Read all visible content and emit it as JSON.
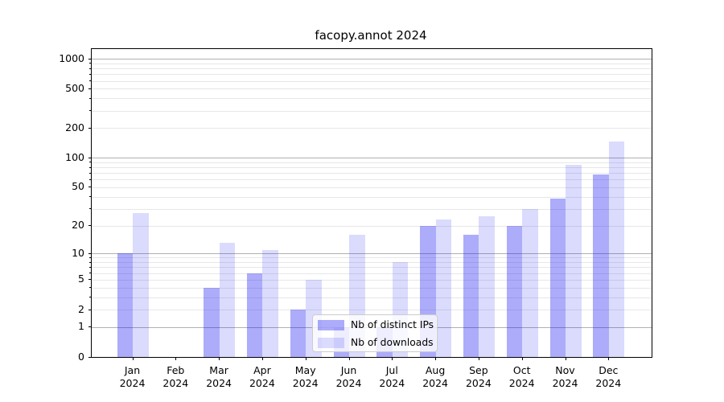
{
  "title": "facopy.annot 2024",
  "legend": {
    "items": [
      {
        "label": "Nb of distinct IPs",
        "color": "rgba(25,25,240,0.36)"
      },
      {
        "label": "Nb of downloads",
        "color": "rgba(25,25,240,0.155)"
      }
    ],
    "position": "lower center"
  },
  "chart_data": {
    "type": "bar",
    "title": "facopy.annot 2024",
    "categories": [
      "Jan 2024",
      "Feb 2024",
      "Mar 2024",
      "Apr 2024",
      "May 2024",
      "Jun 2024",
      "Jul 2024",
      "Aug 2024",
      "Sep 2024",
      "Oct 2024",
      "Nov 2024",
      "Dec 2024"
    ],
    "series": [
      {
        "name": "Nb of distinct IPs",
        "color": "rgba(25,25,240,0.36)",
        "values": [
          10,
          0,
          4,
          6,
          2,
          1,
          1,
          20,
          16,
          20,
          38,
          68
        ]
      },
      {
        "name": "Nb of downloads",
        "color": "rgba(25,25,240,0.155)",
        "values": [
          27,
          0,
          13,
          11,
          5,
          16,
          8,
          23,
          25,
          30,
          85,
          147
        ]
      }
    ],
    "yscale": "log1p",
    "ylim": [
      0,
      1267
    ],
    "ytick_labels": [
      0,
      1,
      2,
      5,
      10,
      20,
      50,
      100,
      200,
      500,
      1000
    ],
    "major_grid_values": [
      1,
      10,
      100,
      1000
    ],
    "minor_grid_values": [
      2,
      3,
      4,
      5,
      6,
      7,
      8,
      9,
      20,
      30,
      40,
      50,
      60,
      70,
      80,
      90,
      200,
      300,
      400,
      500,
      600,
      700,
      800,
      900
    ],
    "grid": "both",
    "legend_position": "lower center",
    "colors": {
      "major_grid": "#b0b0b0",
      "minor_grid": "#e7e7e7",
      "axis": "#000000",
      "background": "#ffffff"
    }
  }
}
